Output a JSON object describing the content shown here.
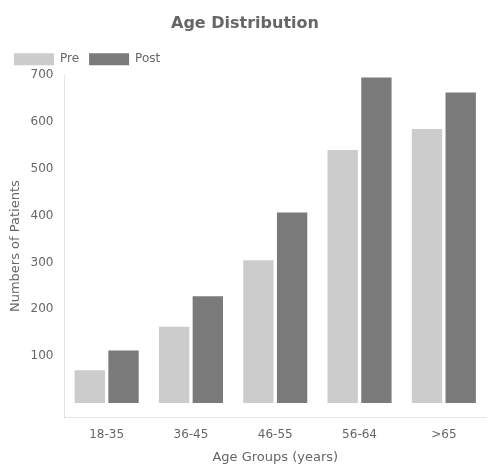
{
  "chart_data": {
    "type": "bar",
    "title": "Age Distribution",
    "xlabel": "Age Groups (years)",
    "ylabel": "Numbers of Patients",
    "categories": [
      "18-35",
      "36-45",
      "46-55",
      "56-64",
      ">65"
    ],
    "series": [
      {
        "name": "Pre",
        "color": "#cccccc",
        "values": [
          70,
          163,
          305,
          540,
          585
        ]
      },
      {
        "name": "Post",
        "color": "#7a7a7a",
        "values": [
          112,
          228,
          407,
          695,
          663
        ]
      }
    ],
    "ylim": [
      -30,
      700
    ],
    "yticks": [
      100,
      200,
      300,
      400,
      500,
      600,
      700
    ],
    "grid": false,
    "legend": "upper left"
  }
}
